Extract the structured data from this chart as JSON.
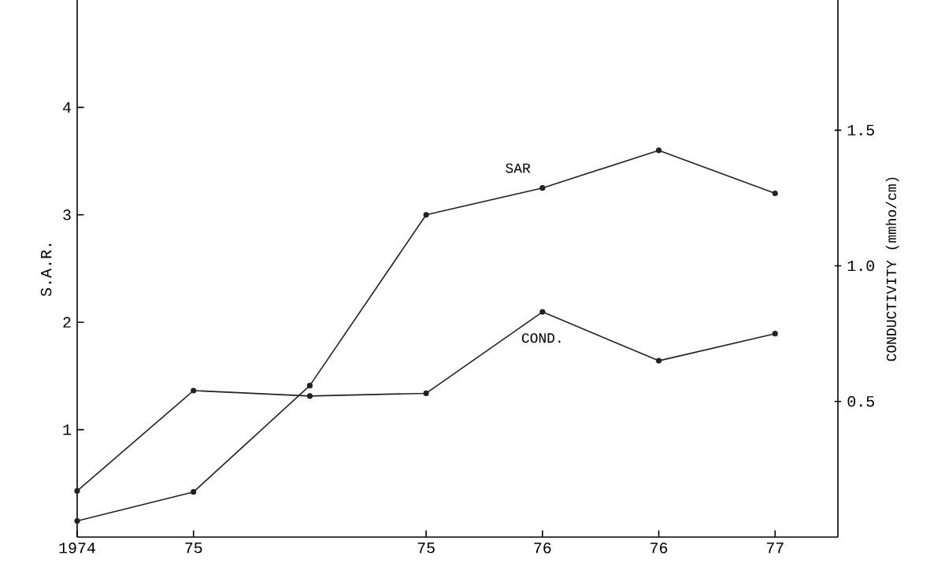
{
  "chart_data": {
    "type": "line",
    "ylabel": "S.A.R.",
    "y2label": "CONDUCTIVITY  (mmho/cm)",
    "categories": [
      "1974",
      "75",
      null,
      "75",
      "76",
      "76",
      "77"
    ],
    "ylim": [
      0,
      5
    ],
    "yticks": [
      1,
      2,
      3,
      4
    ],
    "y2lim": [
      0,
      1.98
    ],
    "y2ticks": [
      0.5,
      {
        "value": 1.0,
        "label": "1.0"
      },
      1.5
    ],
    "marker": "circle",
    "line_style": "solid",
    "grid": false,
    "legend": false,
    "series": [
      {
        "name": "SAR",
        "color": "#222222",
        "values": [
          0.15,
          0.42,
          1.41,
          3.0,
          3.25,
          3.6,
          3.2
        ]
      },
      {
        "name": "COND.",
        "color": "#222222",
        "axis": "y2",
        "values": [
          0.17,
          0.54,
          0.52,
          0.53,
          0.83,
          0.65,
          0.75
        ]
      }
    ]
  }
}
